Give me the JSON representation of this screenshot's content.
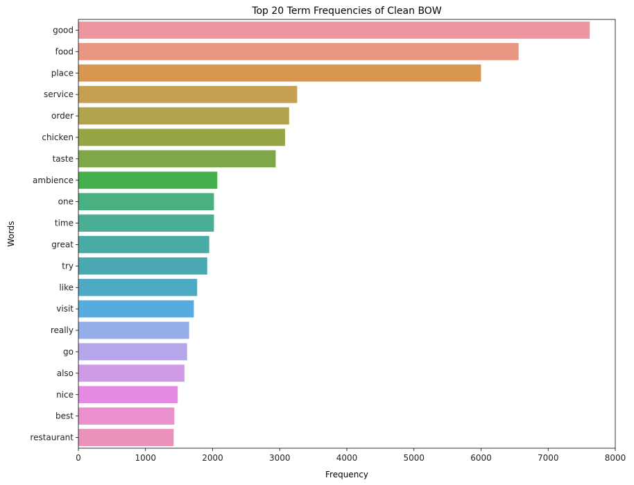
{
  "chart_data": {
    "type": "bar",
    "orientation": "horizontal",
    "title": "Top 20 Term Frequencies of Clean BOW",
    "xlabel": "Frequency",
    "ylabel": "Words",
    "xlim": [
      0,
      8000
    ],
    "xticks": [
      "0",
      "1000",
      "2000",
      "3000",
      "4000",
      "5000",
      "6000",
      "7000",
      "8000"
    ],
    "categories": [
      "good",
      "food",
      "place",
      "service",
      "order",
      "chicken",
      "taste",
      "ambience",
      "one",
      "time",
      "great",
      "try",
      "like",
      "visit",
      "really",
      "go",
      "also",
      "nice",
      "best",
      "restaurant"
    ],
    "values": [
      7620,
      6560,
      6000,
      3260,
      3140,
      3080,
      2940,
      2070,
      2020,
      2020,
      1950,
      1920,
      1770,
      1720,
      1650,
      1620,
      1580,
      1480,
      1430,
      1420
    ],
    "colors": [
      "#ee96a0",
      "#e99682",
      "#d8964e",
      "#c4a050",
      "#b1a34c",
      "#97a546",
      "#7ea847",
      "#46b04e",
      "#48b081",
      "#4aae94",
      "#49aba3",
      "#4aa9b0",
      "#4eaac2",
      "#56abe0",
      "#96aee8",
      "#b6a6ec",
      "#cf9ae6",
      "#e589e2",
      "#ea90cc",
      "#eb92bb"
    ],
    "grid": false,
    "legend": "none"
  }
}
